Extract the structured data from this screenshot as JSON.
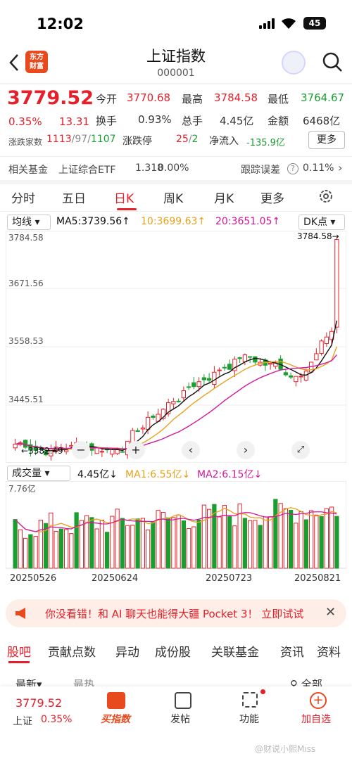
{
  "status": {
    "time": "12:02",
    "battery": "45"
  },
  "header": {
    "logo": [
      "东方",
      "财富"
    ],
    "title": "上证指数",
    "code": "000001"
  },
  "quote": {
    "price": "3779.52",
    "pct": "0.35%",
    "change": "13.31",
    "open_label": "今开",
    "open": "3770.68",
    "high_label": "最高",
    "high": "3784.58",
    "low_label": "最低",
    "low": "3764.67",
    "turnover_label": "换手",
    "turnover": "0.93%",
    "volume_label": "总手",
    "volume": "4.45亿",
    "amount_label": "金额",
    "amount": "6468亿",
    "breadth_label": "涨跌家数",
    "up": "1113",
    "flat": "97",
    "down": "1107",
    "limit_label": "涨跌停",
    "limit_up": "25",
    "limit_down": "2",
    "inflow_label": "净流入",
    "inflow": "-135.9亿",
    "more": "更多"
  },
  "fund": {
    "label": "相关基金",
    "name": "上证综合ETF",
    "price": "1.318",
    "pct": "0.00%",
    "error_label": "跟踪误差",
    "error": "0.11%"
  },
  "tabs": [
    "分时",
    "五日",
    "日K",
    "周K",
    "月K",
    "更多"
  ],
  "chart": {
    "mode": "均线",
    "ma5": "MA5:3739.56↑",
    "ma10": "10:3699.63↑",
    "ma20": "20:3651.05↑",
    "dk": "DK点",
    "y_top": "3784.58",
    "y2": "3671.56",
    "y3": "3558.53",
    "y4": "3445.51",
    "low_label": "3382.49",
    "high_label": "3784.58",
    "vol_mode": "成交量",
    "vol": "4.45亿↓",
    "vma1": "MA1:6.55亿↓",
    "vma2": "MA2:6.15亿↓",
    "vol_max": "7.76亿",
    "dates": [
      "20250526",
      "20250624",
      "20250723",
      "20250821"
    ]
  },
  "banner": {
    "text": "你没看错！和 AI 聊天也能得大疆 Pocket 3！ 立即试试"
  },
  "content_tabs": [
    "股吧",
    "贡献点数",
    "异动",
    "成份股",
    "关联基金",
    "资讯",
    "资料"
  ],
  "sub_tabs": {
    "latest": "最新",
    "hot": "最热",
    "all": "全部"
  },
  "bottom": {
    "price": "3779.52",
    "name": "上证",
    "pct": "0.35%",
    "buy": "买指数",
    "post": "发帖",
    "func": "功能",
    "add": "加自选"
  },
  "watermark": "@财说小熙Mıss",
  "colors": {
    "up": "#e6202a",
    "down": "#1a9e31",
    "ma5": "#111111",
    "ma10": "#e8a21a",
    "ma20": "#d3179b"
  },
  "chart_data": {
    "type": "candlestick",
    "dates": [
      "20250526",
      "20250624",
      "20250723",
      "20250821"
    ],
    "ylim": [
      3382.49,
      3784.58
    ],
    "high": 3784.58,
    "low": 3382.49,
    "volume_max": "7.76亿"
  }
}
